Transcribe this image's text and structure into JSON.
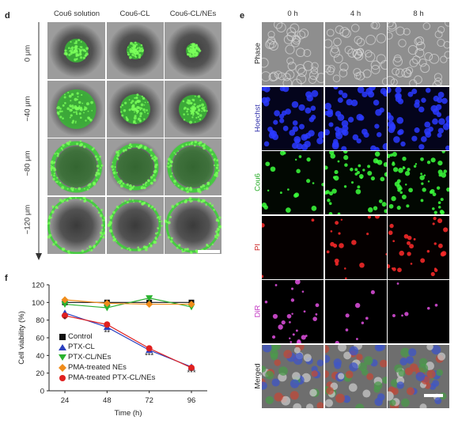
{
  "panel_d": {
    "label": "d",
    "columns": [
      "Cou6 solution",
      "Cou6-CL",
      "Cou6-CL/NEs"
    ],
    "depths": [
      "0 μm",
      "−40 μm",
      "−80 μm",
      "−120 μm"
    ]
  },
  "panel_e": {
    "label": "e",
    "columns": [
      "0 h",
      "4 h",
      "8 h"
    ],
    "rows": [
      {
        "label": "Phase",
        "color": "#222222"
      },
      {
        "label": "Hoechst",
        "color": "#2a2aa8"
      },
      {
        "label": "Cou6",
        "color": "#22aa22"
      },
      {
        "label": "PI",
        "color": "#cc2222"
      },
      {
        "label": "DiR",
        "color": "#c030c0"
      },
      {
        "label": "Merged",
        "color": "#222222"
      }
    ]
  },
  "panel_f": {
    "label": "f",
    "ylabel": "Cell viability (%)",
    "xlabel": "Time (h)",
    "significance": [
      {
        "x": 24,
        "text": "*"
      },
      {
        "x": 48,
        "text": "**"
      },
      {
        "x": 72,
        "text": "***"
      },
      {
        "x": 96,
        "text": "***"
      }
    ]
  },
  "chart_data": {
    "type": "line",
    "x": [
      24,
      48,
      72,
      96
    ],
    "xlim": [
      24,
      96
    ],
    "ylim": [
      0,
      120
    ],
    "yticks": [
      0,
      20,
      40,
      60,
      80,
      100,
      120
    ],
    "xticks": [
      24,
      48,
      72,
      96
    ],
    "xlabel": "Time (h)",
    "ylabel": "Cell viability (%)",
    "legend_position": "bottom-left",
    "series": [
      {
        "name": "Control",
        "values": [
          100,
          100,
          100,
          100
        ],
        "color": "#111111",
        "marker": "square"
      },
      {
        "name": "PTX-CL",
        "values": [
          88,
          72,
          46,
          27
        ],
        "color": "#2a3fbf",
        "marker": "triangle-up"
      },
      {
        "name": "PTX-CL/NEs",
        "values": [
          98,
          94,
          105,
          95
        ],
        "color": "#29b22f",
        "marker": "triangle-down"
      },
      {
        "name": "PMA-treated NEs",
        "values": [
          103,
          99,
          98,
          98
        ],
        "color": "#f08c1a",
        "marker": "diamond"
      },
      {
        "name": "PMA-treated PTX-CL/NEs",
        "values": [
          85,
          75,
          48,
          26
        ],
        "color": "#e02020",
        "marker": "circle"
      }
    ]
  }
}
